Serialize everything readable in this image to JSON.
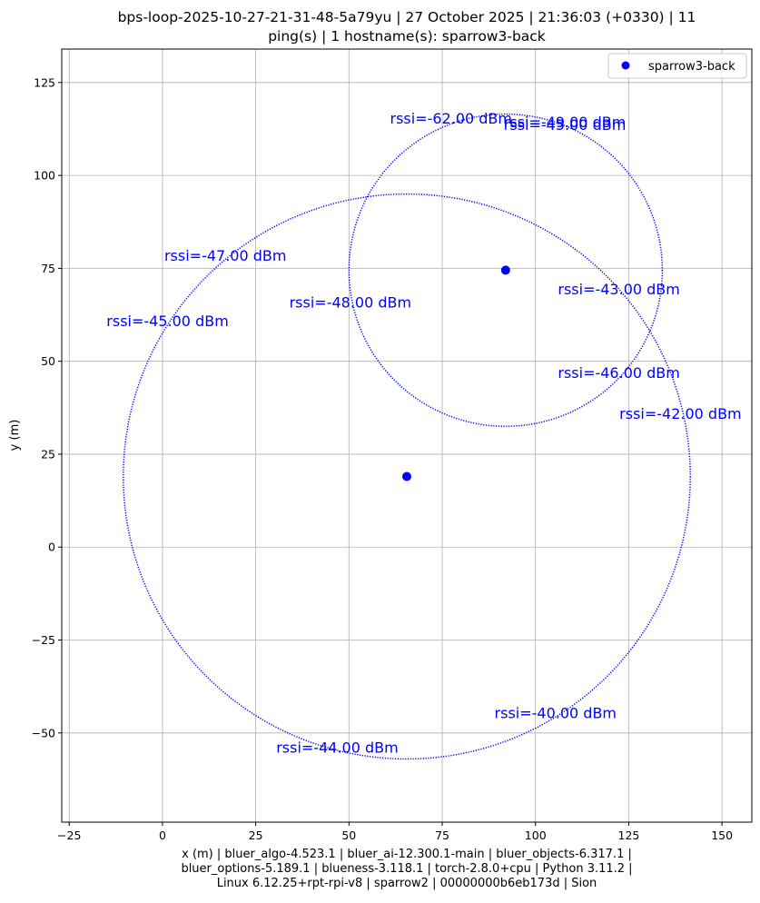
{
  "chart_data": {
    "type": "scatter",
    "title_lines": [
      "bps-loop-2025-10-27-21-31-48-5a79yu | 27 October 2025 | 21:36:03 (+0330) | 11",
      "ping(s) | 1 hostname(s): sparrow3-back"
    ],
    "xlabel_lines": [
      "x (m) | bluer_algo-4.523.1 | bluer_ai-12.300.1-main | bluer_objects-6.317.1 |",
      "bluer_options-5.189.1 | blueness-3.118.1 | torch-2.8.0+cpu | Python 3.11.2 |",
      "Linux 6.12.25+rpt-rpi-v8 | sparrow2 | 00000000b6eb173d | Sion"
    ],
    "ylabel": "y (m)",
    "xlim": [
      -27,
      158
    ],
    "ylim": [
      -74,
      134
    ],
    "xticks": [
      -25,
      0,
      25,
      50,
      75,
      100,
      125,
      150
    ],
    "yticks": [
      -50,
      -25,
      0,
      25,
      50,
      75,
      100,
      125
    ],
    "grid": true,
    "legend": {
      "position": "top-right",
      "entries": [
        "sparrow3-back"
      ]
    },
    "color": "#0000ff",
    "series": [
      {
        "name": "sparrow3-back",
        "points": [
          {
            "x": 65.5,
            "y": 19
          },
          {
            "x": 92,
            "y": 74.5
          }
        ]
      }
    ],
    "circles": [
      {
        "cx": 65.5,
        "cy": 19,
        "r": 76
      },
      {
        "cx": 92,
        "cy": 74.5,
        "r": 42
      }
    ],
    "annotations": [
      {
        "text": "rssi=-62.00 dBm",
        "x": 61,
        "y": 114
      },
      {
        "text": "rssi=-49.00 dBm",
        "x": 91.5,
        "y": 113
      },
      {
        "text": "rssi=-45.00 dBm",
        "x": 91.5,
        "y": 112.3
      },
      {
        "text": "rssi=-47.00 dBm",
        "x": 0.5,
        "y": 77
      },
      {
        "text": "rssi=-48.00 dBm",
        "x": 34,
        "y": 64.5
      },
      {
        "text": "rssi=-43.00 dBm",
        "x": 106,
        "y": 68
      },
      {
        "text": "rssi=-45.00 dBm",
        "x": -15,
        "y": 59.5
      },
      {
        "text": "rssi=-46.00 dBm",
        "x": 106,
        "y": 45.5
      },
      {
        "text": "rssi=-42.00 dBm",
        "x": 122.5,
        "y": 34.5
      },
      {
        "text": "rssi=-40.00 dBm",
        "x": 89,
        "y": -46
      },
      {
        "text": "rssi=-44.00 dBm",
        "x": 30.5,
        "y": -55.3
      }
    ]
  }
}
